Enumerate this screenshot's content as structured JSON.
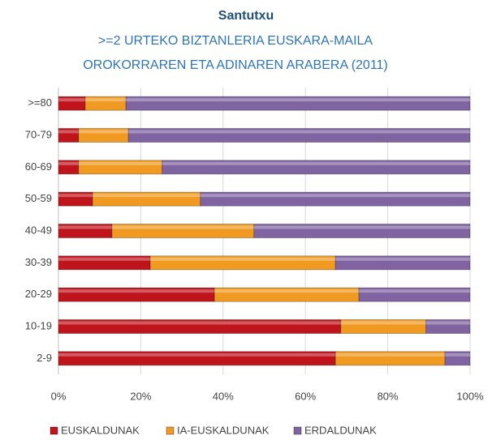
{
  "chart_data": {
    "type": "stacked_barh",
    "title": "Santutxu",
    "subtitle": [
      ">=2 URTEKO BIZTANLERIA EUSKARA-MAILA",
      "OROKORRAREN ETA ADINAREN ARABERA (2011)"
    ],
    "categories": [
      ">=80",
      "70-79",
      "60-69",
      "50-59",
      "40-49",
      "30-39",
      "20-29",
      "10-19",
      "2-9"
    ],
    "series": [
      {
        "name": "EUSKALDUNAK",
        "color": "#c0141c",
        "values": [
          6.5,
          4.9,
          4.9,
          8.3,
          13.0,
          22.3,
          37.9,
          68.6,
          67.3
        ]
      },
      {
        "name": "IA-EUSKALDUNAK",
        "color": "#f09a22",
        "values": [
          9.9,
          12.1,
          20.3,
          26.2,
          34.5,
          45.0,
          35.1,
          20.7,
          26.6
        ]
      },
      {
        "name": "ERDALDUNAK",
        "color": "#8064a2",
        "values": [
          83.6,
          83.0,
          74.8,
          65.5,
          52.5,
          32.7,
          27.0,
          10.7,
          6.1
        ]
      }
    ],
    "xlim": [
      0,
      100
    ],
    "xticks": [
      {
        "value": 0,
        "label": "0%"
      },
      {
        "value": 20,
        "label": "20%"
      },
      {
        "value": 40,
        "label": "40%"
      },
      {
        "value": 60,
        "label": "60%"
      },
      {
        "value": 80,
        "label": "80%"
      },
      {
        "value": 100,
        "label": "100%"
      }
    ],
    "grid": true,
    "legend": "bottom"
  }
}
